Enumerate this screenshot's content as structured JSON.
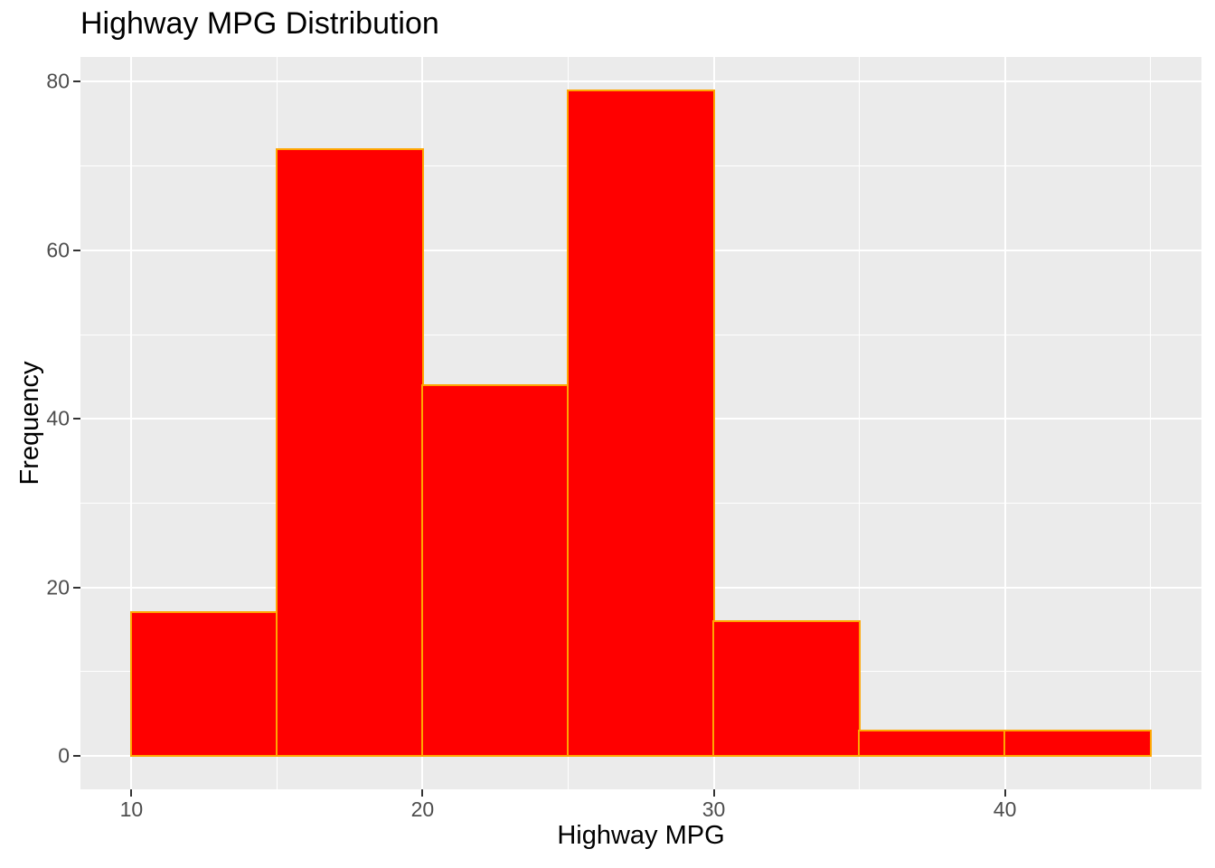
{
  "chart_data": {
    "type": "bar",
    "subtype": "histogram",
    "title": "Highway MPG Distribution",
    "xlabel": "Highway MPG",
    "ylabel": "Frequency",
    "bin_width": 5,
    "bins": [
      {
        "start": 10,
        "end": 15,
        "count": 17
      },
      {
        "start": 15,
        "end": 20,
        "count": 72
      },
      {
        "start": 20,
        "end": 25,
        "count": 44
      },
      {
        "start": 25,
        "end": 30,
        "count": 79
      },
      {
        "start": 30,
        "end": 35,
        "count": 16
      },
      {
        "start": 35,
        "end": 40,
        "count": 3
      },
      {
        "start": 40,
        "end": 45,
        "count": 3
      }
    ],
    "x_major_ticks": [
      10,
      20,
      30,
      40
    ],
    "x_minor_gridlines": [
      15,
      25,
      35,
      45
    ],
    "y_major_ticks": [
      0,
      20,
      40,
      60,
      80
    ],
    "y_minor_gridlines": [
      10,
      30,
      50,
      70
    ],
    "xlim": [
      8.25,
      46.75
    ],
    "ylim": [
      -3.95,
      82.95
    ],
    "grid": true,
    "legend": false,
    "colors": {
      "bar_fill": "#FF0000",
      "bar_stroke": "#FFA500",
      "panel_background": "#EBEBEB",
      "gridline": "#FFFFFF",
      "tick_mark": "#333333",
      "tick_label": "#4D4D4D",
      "title_text": "#000000"
    }
  }
}
